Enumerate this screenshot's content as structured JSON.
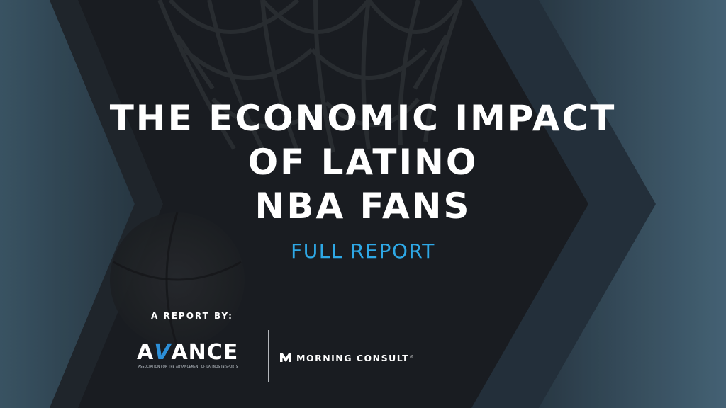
{
  "title_lines": [
    "THE ECONOMIC IMPACT",
    "OF LATINO",
    "NBA FANS"
  ],
  "subtitle": "FULL REPORT",
  "report_by": "A REPORT BY:",
  "logos": {
    "avance": {
      "prefix": "A",
      "accent": "V",
      "suffix": "ANCE",
      "tagline": "ASSOCIATION FOR THE ADVANCEMENT OF LATINOS IN SPORTS",
      "icon": "avance-logo"
    },
    "morning_consult": {
      "name": "MORNING CONSULT",
      "mark": "®",
      "icon": "morning-consult-m-icon"
    }
  },
  "colors": {
    "background": "#1c1f24",
    "title": "#ffffff",
    "subtitle": "#2ea8e6",
    "avance_accent": "#2c8fd8",
    "chevron": "#3a5567"
  }
}
